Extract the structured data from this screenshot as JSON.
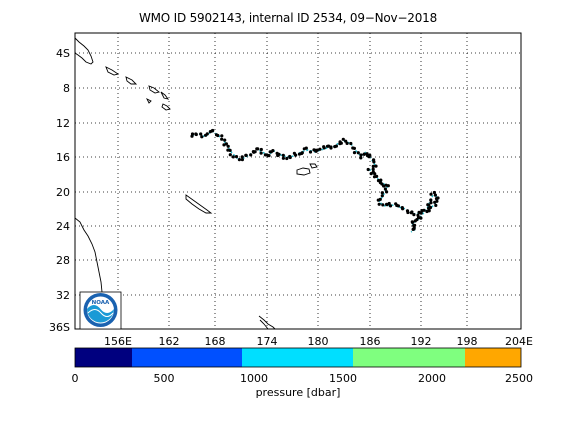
{
  "map": {
    "title": "WMO ID 5902143, internal ID 2534, 09−Nov−2018",
    "lat_labels": [
      "4S",
      "8",
      "12",
      "16",
      "20",
      "24",
      "28",
      "32",
      "36S"
    ],
    "lon_labels": [
      "156E",
      "162",
      "168",
      "174",
      "180",
      "186",
      "192",
      "198",
      "204E"
    ],
    "logo_text": "NOAA"
  },
  "colorbar": {
    "label": "pressure [dbar]",
    "ticks": [
      "0",
      "500",
      "1000",
      "1500",
      "2000",
      "2500"
    ],
    "colors": [
      "#00007f",
      "#0050ff",
      "#00dfff",
      "#7fff7f",
      "#ffa700"
    ]
  },
  "track": {
    "colors": {
      "profile": "#000000",
      "path": "#22b8c8"
    }
  }
}
